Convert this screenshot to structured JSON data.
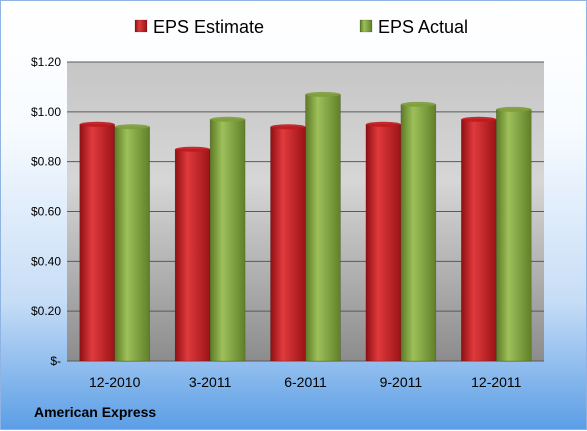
{
  "chart_data": {
    "type": "bar",
    "categories": [
      "12-2010",
      "3-2011",
      "6-2011",
      "9-2011",
      "12-2011"
    ],
    "series": [
      {
        "name": "EPS Estimate",
        "values": [
          0.95,
          0.85,
          0.94,
          0.95,
          0.97
        ],
        "color": "#c0191d"
      },
      {
        "name": "EPS Actual",
        "values": [
          0.94,
          0.97,
          1.07,
          1.03,
          1.01
        ],
        "color": "#7e9f3b"
      }
    ],
    "y_ticks": [
      {
        "value": 0,
        "label": "$-"
      },
      {
        "value": 0.2,
        "label": "$0.20"
      },
      {
        "value": 0.4,
        "label": "$0.40"
      },
      {
        "value": 0.6,
        "label": "$0.60"
      },
      {
        "value": 0.8,
        "label": "$0.80"
      },
      {
        "value": 1.0,
        "label": "$1.00"
      },
      {
        "value": 1.2,
        "label": "$1.20"
      }
    ],
    "ylim": [
      0,
      1.2
    ],
    "grid": true,
    "legend": "top-center"
  },
  "footer": {
    "company": "American Express"
  }
}
